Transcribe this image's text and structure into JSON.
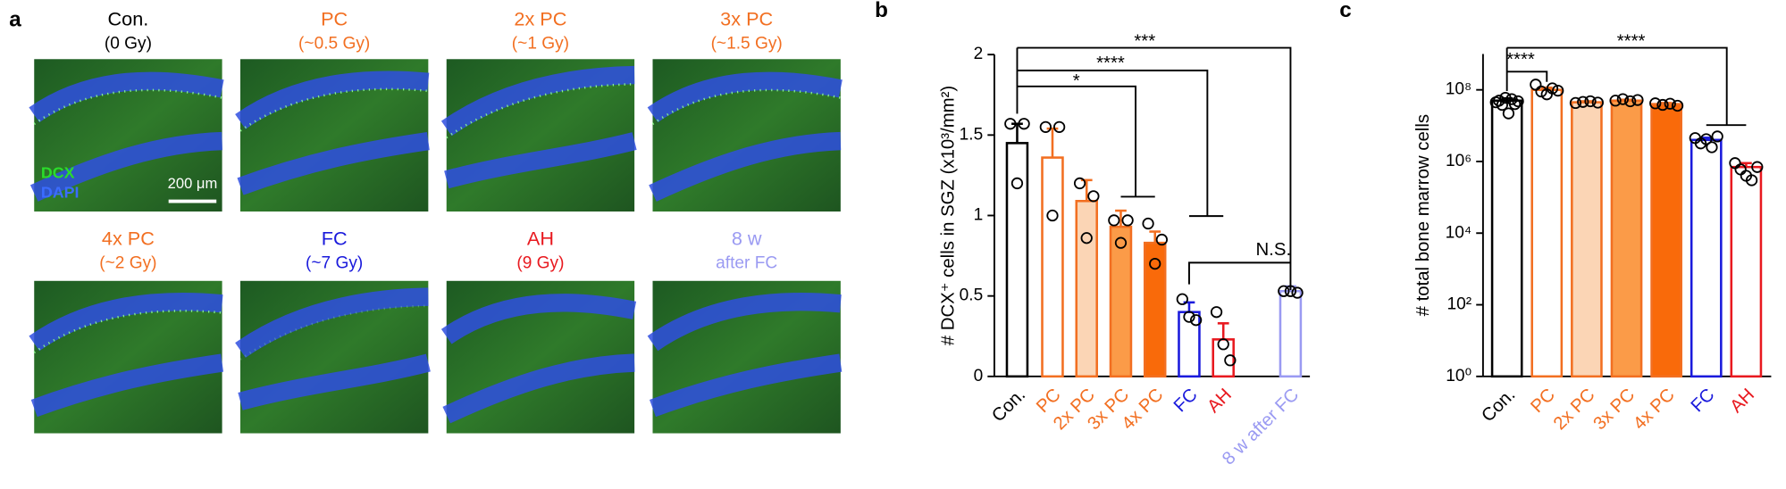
{
  "panel_a": {
    "label": "a",
    "images": [
      {
        "title": "Con.",
        "dose": "(0 Gy)",
        "color": "#000000"
      },
      {
        "title": "PC",
        "dose": "(~0.5 Gy)",
        "color": "#f26f21"
      },
      {
        "title": "2x PC",
        "dose": "(~1 Gy)",
        "color": "#f26f21"
      },
      {
        "title": "3x PC",
        "dose": "(~1.5 Gy)",
        "color": "#f26f21"
      },
      {
        "title": "4x PC",
        "dose": "(~2 Gy)",
        "color": "#f26f21"
      },
      {
        "title": "FC",
        "dose": "(~7 Gy)",
        "color": "#1a1adc"
      },
      {
        "title": "AH",
        "dose": "(9 Gy)",
        "color": "#e8191f"
      },
      {
        "title": "8 w",
        "dose": "after FC",
        "color": "#9a9af2"
      }
    ],
    "stain_labels": [
      "DCX",
      "DAPI"
    ],
    "scale_bar": "200 μm"
  },
  "chart_data": [
    {
      "type": "bar",
      "panel": "b",
      "ylabel": "# DCX⁺ cells in SGZ (x10³/mm²)",
      "categories": [
        "Con.",
        "PC",
        "2x PC",
        "3x PC",
        "4x PC",
        "FC",
        "AH",
        "8 w after FC"
      ],
      "values": [
        1.45,
        1.36,
        1.09,
        0.93,
        0.83,
        0.4,
        0.23,
        0.53
      ],
      "errors": [
        0.12,
        0.18,
        0.13,
        0.1,
        0.07,
        0.06,
        0.1,
        0.03
      ],
      "points": [
        [
          1.57,
          1.57,
          1.2
        ],
        [
          1.55,
          1.55,
          1.0
        ],
        [
          1.2,
          1.12,
          0.86
        ],
        [
          0.97,
          0.97,
          0.83
        ],
        [
          0.95,
          0.85,
          0.7
        ],
        [
          0.48,
          0.35,
          0.37
        ],
        [
          0.4,
          0.1,
          0.2
        ],
        [
          0.53,
          0.52,
          0.53
        ]
      ],
      "colors": [
        "#000000",
        "#f26f21",
        "#f26f21",
        "#f26f21",
        "#f26f21",
        "#1a1adc",
        "#e8191f",
        "#9a9af2"
      ],
      "fills": [
        "#ffffff",
        "#ffffff",
        "#fbd5b5",
        "#fb9b48",
        "#f96a0a",
        "#ffffff",
        "#ffffff",
        "#ffffff"
      ],
      "ylim": [
        0,
        2
      ],
      "yticks": [
        0,
        0.5,
        1,
        1.5,
        2
      ],
      "annotations": [
        "*",
        "****",
        "***",
        "N.S."
      ]
    },
    {
      "type": "bar",
      "panel": "c",
      "ylabel": "# total bone marrow cells",
      "log_scale": true,
      "categories": [
        "Con.",
        "PC",
        "2x PC",
        "3x PC",
        "4x PC",
        "FC",
        "AH"
      ],
      "values": [
        50000000,
        100000000,
        45000000,
        50000000,
        40000000,
        4000000,
        700000
      ],
      "errors": [
        8000000,
        15000000,
        3000000,
        3000000,
        3000000,
        600000,
        200000
      ],
      "points": [
        [
          45000000,
          50000000,
          38000000,
          60000000,
          22000000,
          55000000,
          40000000,
          48000000
        ],
        [
          140000000,
          90000000,
          75000000,
          110000000,
          95000000
        ],
        [
          43000000,
          46000000,
          48000000,
          44000000
        ],
        [
          50000000,
          55000000,
          48000000,
          52000000
        ],
        [
          42000000,
          38000000,
          41000000,
          36000000
        ],
        [
          4500000,
          3200000,
          4200000,
          2500000,
          5000000
        ],
        [
          900000,
          600000,
          400000,
          300000,
          700000
        ]
      ],
      "colors": [
        "#000000",
        "#f26f21",
        "#f26f21",
        "#f26f21",
        "#f26f21",
        "#1a1adc",
        "#e8191f"
      ],
      "fills": [
        "#ffffff",
        "#ffffff",
        "#fbd5b5",
        "#fb9b48",
        "#f96a0a",
        "#ffffff",
        "#ffffff"
      ],
      "ylim": [
        1,
        1000000000
      ],
      "yticks": [
        {
          "value": 1,
          "label": "10⁰"
        },
        {
          "value": 100,
          "label": "10²"
        },
        {
          "value": 10000,
          "label": "10⁴"
        },
        {
          "value": 1000000,
          "label": "10⁶"
        },
        {
          "value": 100000000,
          "label": "10⁸"
        }
      ],
      "annotations": [
        "****",
        "****"
      ]
    }
  ]
}
